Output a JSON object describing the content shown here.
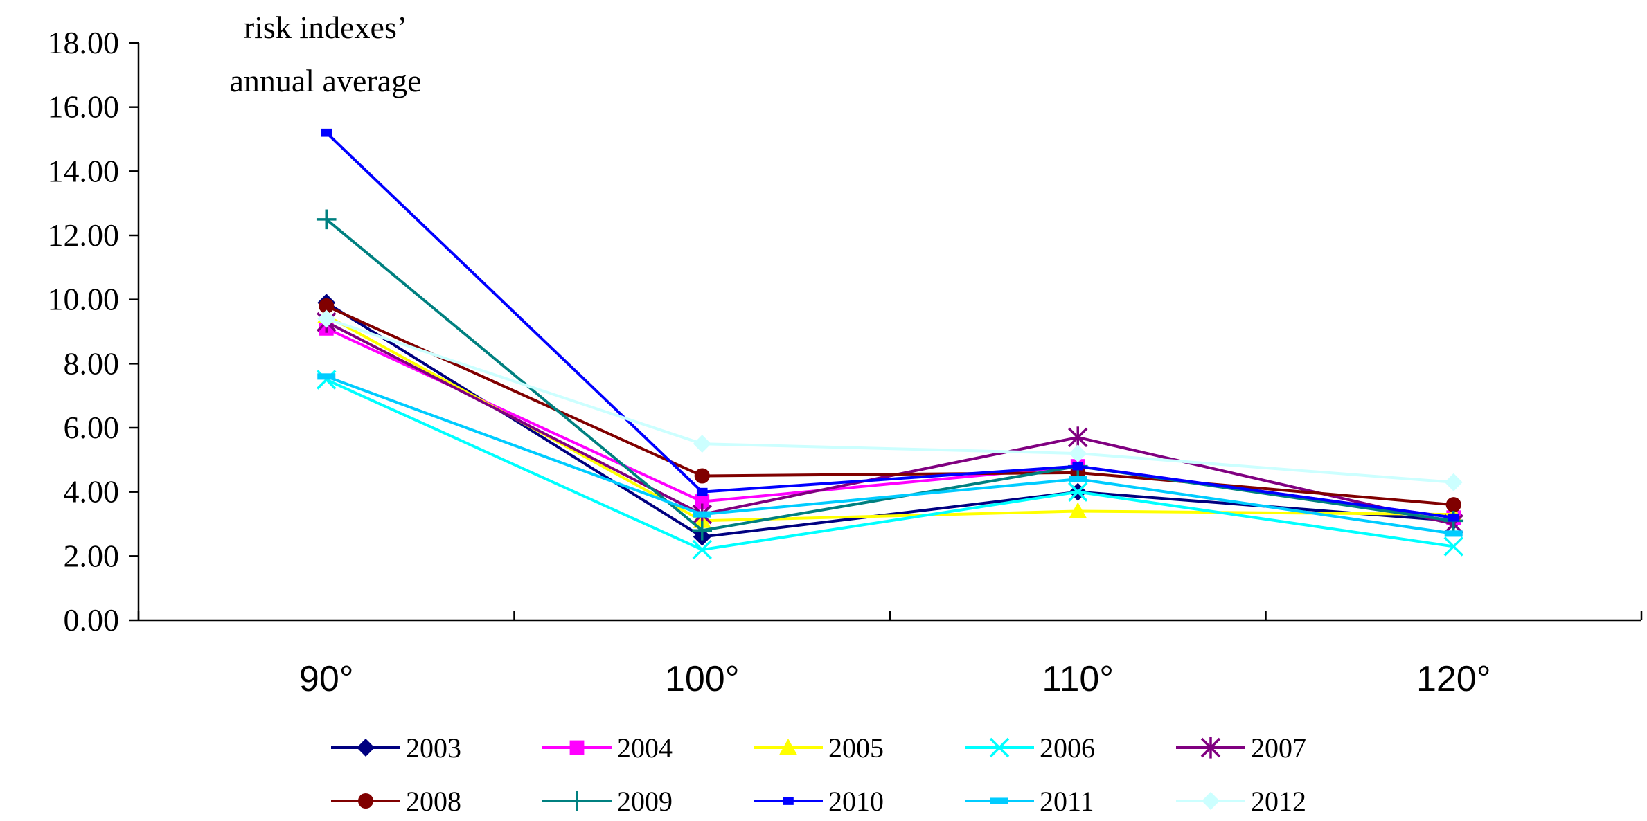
{
  "chart_data": {
    "type": "line",
    "title_lines": [
      "risk indexes’",
      "annual average"
    ],
    "categories": [
      "90°",
      "100°",
      "110°",
      "120°"
    ],
    "ylim": [
      0,
      18
    ],
    "yticks": [
      0,
      2,
      4,
      6,
      8,
      10,
      12,
      14,
      16,
      18
    ],
    "ytick_labels": [
      "0.00",
      "2.00",
      "4.00",
      "6.00",
      "8.00",
      "10.00",
      "12.00",
      "14.00",
      "16.00",
      "18.00"
    ],
    "grid": false,
    "legend_position": "bottom",
    "series": [
      {
        "name": "2003",
        "color": "#000080",
        "marker": "diamond",
        "values": [
          9.9,
          2.6,
          4.0,
          3.1
        ]
      },
      {
        "name": "2004",
        "color": "#FF00FF",
        "marker": "square",
        "values": [
          9.1,
          3.7,
          4.8,
          3.2
        ]
      },
      {
        "name": "2005",
        "color": "#FFFF00",
        "marker": "triangle",
        "values": [
          9.5,
          3.1,
          3.4,
          3.3
        ]
      },
      {
        "name": "2006",
        "color": "#00FFFF",
        "marker": "x",
        "values": [
          7.5,
          2.2,
          4.0,
          2.3
        ]
      },
      {
        "name": "2007",
        "color": "#800080",
        "marker": "star",
        "values": [
          9.3,
          3.3,
          5.7,
          3.0
        ]
      },
      {
        "name": "2008",
        "color": "#800000",
        "marker": "circle",
        "values": [
          9.8,
          4.5,
          4.6,
          3.6
        ]
      },
      {
        "name": "2009",
        "color": "#008080",
        "marker": "plus",
        "values": [
          12.5,
          2.8,
          4.8,
          3.1
        ]
      },
      {
        "name": "2010",
        "color": "#0000FF",
        "marker": "dash",
        "values": [
          15.2,
          4.0,
          4.8,
          3.2
        ]
      },
      {
        "name": "2011",
        "color": "#00CCFF",
        "marker": "bar",
        "values": [
          7.6,
          3.3,
          4.4,
          2.7
        ]
      },
      {
        "name": "2012",
        "color": "#CCFFFF",
        "marker": "diamond",
        "values": [
          9.4,
          5.5,
          5.2,
          4.3
        ]
      }
    ]
  }
}
